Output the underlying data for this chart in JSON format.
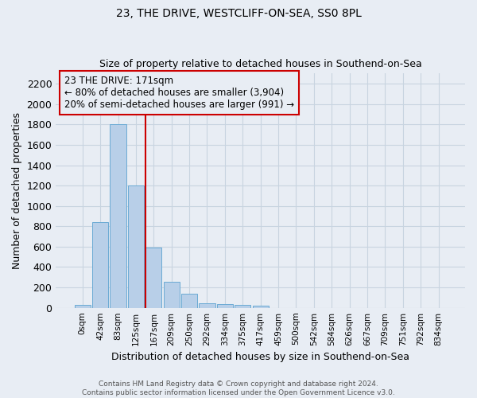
{
  "title": "23, THE DRIVE, WESTCLIFF-ON-SEA, SS0 8PL",
  "subtitle": "Size of property relative to detached houses in Southend-on-Sea",
  "xlabel": "Distribution of detached houses by size in Southend-on-Sea",
  "ylabel": "Number of detached properties",
  "categories": [
    "0sqm",
    "42sqm",
    "83sqm",
    "125sqm",
    "167sqm",
    "209sqm",
    "250sqm",
    "292sqm",
    "334sqm",
    "375sqm",
    "417sqm",
    "459sqm",
    "500sqm",
    "542sqm",
    "584sqm",
    "626sqm",
    "667sqm",
    "709sqm",
    "751sqm",
    "792sqm",
    "834sqm"
  ],
  "bar_heights": [
    25,
    845,
    1800,
    1200,
    595,
    255,
    135,
    45,
    40,
    30,
    20,
    0,
    0,
    0,
    0,
    0,
    0,
    0,
    0,
    0,
    0
  ],
  "bar_color": "#b8cfe8",
  "bar_edge_color": "#6aaad4",
  "grid_color": "#c8d4e0",
  "background_color": "#e8edf4",
  "annotation_box_color": "#cc0000",
  "annotation_text": "23 THE DRIVE: 171sqm\n← 80% of detached houses are smaller (3,904)\n20% of semi-detached houses are larger (991) →",
  "vline_color": "#cc0000",
  "ylim": [
    0,
    2300
  ],
  "yticks": [
    0,
    200,
    400,
    600,
    800,
    1000,
    1200,
    1400,
    1600,
    1800,
    2000,
    2200
  ],
  "footer_line1": "Contains HM Land Registry data © Crown copyright and database right 2024.",
  "footer_line2": "Contains public sector information licensed under the Open Government Licence v3.0.",
  "title_fontsize": 10,
  "subtitle_fontsize": 9
}
